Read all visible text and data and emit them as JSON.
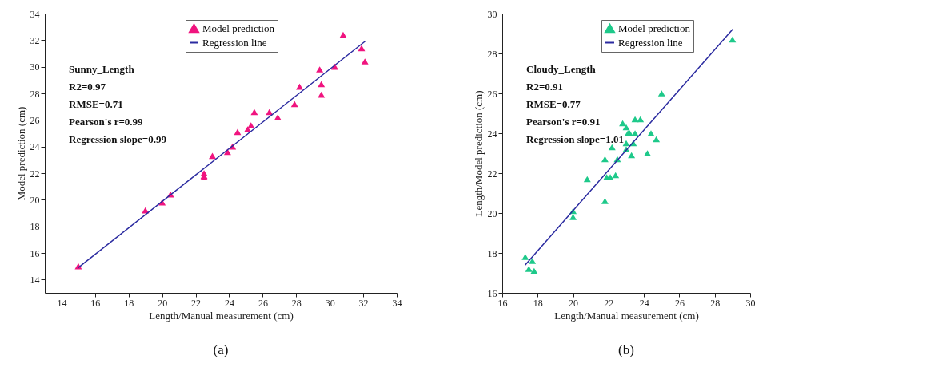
{
  "chart_data": [
    {
      "type": "scatter",
      "xlabel": "Length/Manual measurement (cm)",
      "ylabel": "Model prediction (cm)",
      "xlim": [
        13,
        34
      ],
      "ylim": [
        13,
        34
      ],
      "xticks": [
        14,
        16,
        18,
        20,
        22,
        24,
        26,
        28,
        30,
        32,
        34
      ],
      "yticks": [
        14,
        16,
        18,
        20,
        22,
        24,
        26,
        28,
        30,
        32,
        34
      ],
      "legend": "top right",
      "grid": false,
      "annotations": [
        "Sunny_Length",
        "R2=0.97",
        "RMSE=0.71",
        "Pearson's r=0.99",
        "Regression slope=0.99",
        "(a)"
      ],
      "series": [
        {
          "name": "Model prediction",
          "marker": "triangle",
          "color": "#f0147f",
          "x": [
            15,
            19,
            20,
            20.5,
            22.5,
            22.5,
            22.5,
            23,
            23.9,
            24.2,
            24.5,
            25.1,
            25.3,
            25.5,
            26.4,
            26.9,
            27.9,
            28.2,
            29.4,
            29.5,
            29.5,
            30.3,
            30.8,
            31.9,
            32.1
          ],
          "values": [
            15,
            19.2,
            19.8,
            20.4,
            22,
            21.8,
            21.7,
            23.3,
            23.6,
            24,
            25.1,
            25.3,
            25.6,
            26.6,
            26.6,
            26.2,
            27.2,
            28.5,
            29.8,
            28.7,
            27.9,
            30,
            32.4,
            31.4,
            30.4
          ]
        },
        {
          "name": "Regression line",
          "type": "line",
          "color": "#2b2ba0",
          "x": [
            15,
            32.1
          ],
          "values": [
            14.9,
            31.9
          ]
        }
      ]
    },
    {
      "type": "scatter",
      "xlabel": "Length/Manual measurement (cm)",
      "ylabel": "Length/Model prediction (cm)",
      "xlim": [
        16,
        30
      ],
      "ylim": [
        16,
        30
      ],
      "xticks": [
        16,
        18,
        20,
        22,
        24,
        26,
        28,
        30
      ],
      "yticks": [
        16,
        18,
        20,
        22,
        24,
        26,
        28,
        30
      ],
      "legend": "top right",
      "grid": false,
      "annotations": [
        "Cloudy_Length",
        "R2=0.91",
        "RMSE=0.77",
        "Pearson's r=0.91",
        "Regression slope=1.01",
        "(b)"
      ],
      "series": [
        {
          "name": "Model prediction",
          "marker": "triangle",
          "color": "#1ec98a",
          "x": [
            17.3,
            17.5,
            17.7,
            17.8,
            20,
            20,
            20.8,
            21.8,
            21.8,
            21.9,
            22.1,
            22.2,
            22.4,
            22.5,
            22.8,
            23,
            23,
            23,
            23.1,
            23.2,
            23.3,
            23.4,
            23.5,
            23.5,
            23.8,
            24.2,
            24.4,
            24.7,
            25,
            29
          ],
          "values": [
            17.8,
            17.2,
            17.6,
            17.1,
            20.1,
            19.8,
            21.7,
            22.7,
            20.6,
            21.8,
            21.8,
            23.3,
            21.9,
            22.7,
            24.5,
            24.3,
            23.5,
            23.2,
            24,
            24,
            22.9,
            23.5,
            24,
            24.7,
            24.7,
            23,
            24,
            23.7,
            26,
            28.7
          ]
        },
        {
          "name": "Regression line",
          "type": "line",
          "color": "#2b2ba0",
          "x": [
            17.3,
            29
          ],
          "values": [
            17.4,
            29.2
          ]
        }
      ]
    }
  ]
}
